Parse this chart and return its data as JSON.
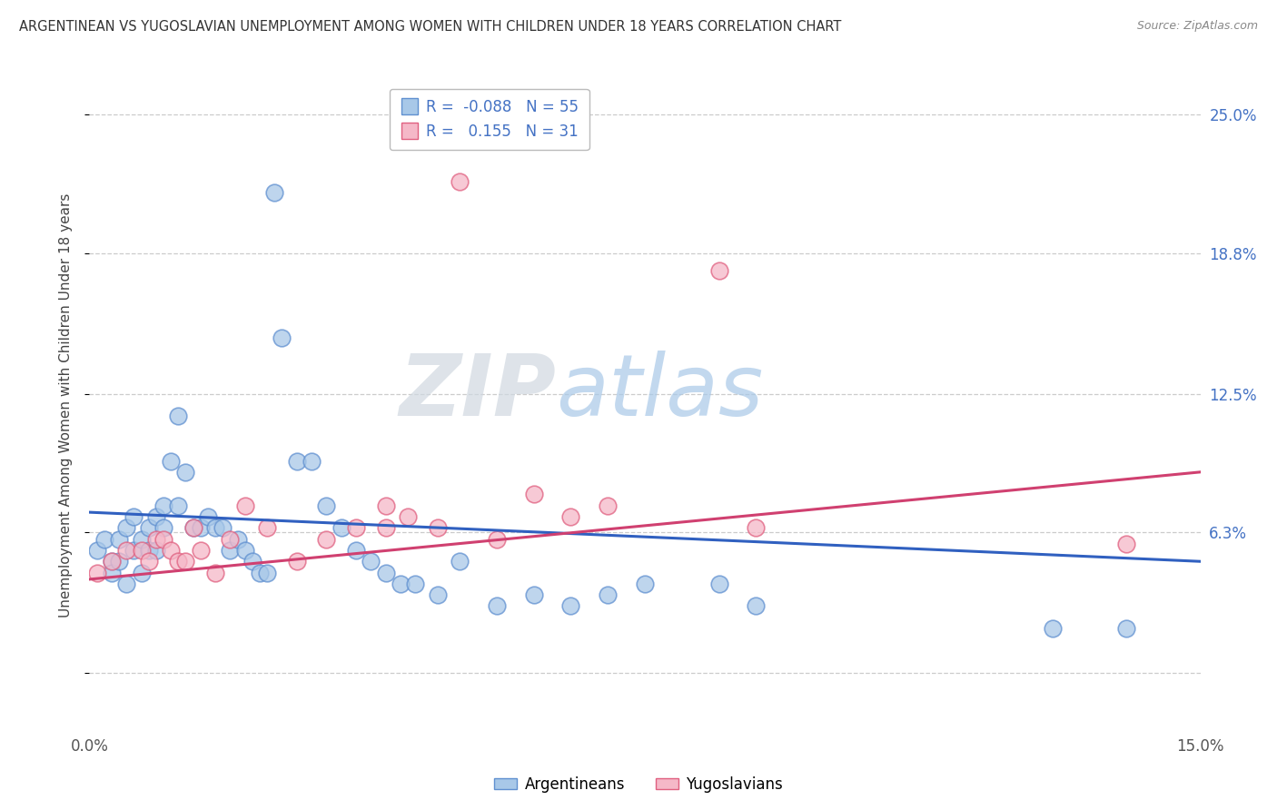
{
  "title": "ARGENTINEAN VS YUGOSLAVIAN UNEMPLOYMENT AMONG WOMEN WITH CHILDREN UNDER 18 YEARS CORRELATION CHART",
  "source": "Source: ZipAtlas.com",
  "ylabel": "Unemployment Among Women with Children Under 18 years",
  "xlim": [
    0.0,
    0.15
  ],
  "ylim": [
    -0.025,
    0.265
  ],
  "background_color": "#ffffff",
  "grid_color": "#cccccc",
  "watermark_zip": "ZIP",
  "watermark_atlas": "atlas",
  "blue_color": "#a8c8e8",
  "pink_color": "#f5b8c8",
  "blue_edge_color": "#6090d0",
  "pink_edge_color": "#e06080",
  "blue_line_color": "#3060c0",
  "pink_line_color": "#d04070",
  "label_color": "#4472c4",
  "legend_blue_r": "-0.088",
  "legend_blue_n": "55",
  "legend_pink_r": "0.155",
  "legend_pink_n": "31",
  "legend_label_blue": "Argentineans",
  "legend_label_pink": "Yugoslavians",
  "blue_x": [
    0.001,
    0.002,
    0.003,
    0.003,
    0.004,
    0.004,
    0.005,
    0.005,
    0.006,
    0.006,
    0.007,
    0.007,
    0.008,
    0.008,
    0.009,
    0.009,
    0.01,
    0.01,
    0.011,
    0.012,
    0.012,
    0.013,
    0.014,
    0.015,
    0.016,
    0.017,
    0.018,
    0.019,
    0.02,
    0.021,
    0.022,
    0.023,
    0.024,
    0.025,
    0.026,
    0.028,
    0.03,
    0.032,
    0.034,
    0.036,
    0.038,
    0.04,
    0.042,
    0.044,
    0.047,
    0.05,
    0.055,
    0.06,
    0.065,
    0.07,
    0.075,
    0.085,
    0.09,
    0.13,
    0.14
  ],
  "blue_y": [
    0.055,
    0.06,
    0.05,
    0.045,
    0.06,
    0.05,
    0.065,
    0.04,
    0.07,
    0.055,
    0.06,
    0.045,
    0.065,
    0.055,
    0.07,
    0.055,
    0.075,
    0.065,
    0.095,
    0.115,
    0.075,
    0.09,
    0.065,
    0.065,
    0.07,
    0.065,
    0.065,
    0.055,
    0.06,
    0.055,
    0.05,
    0.045,
    0.045,
    0.215,
    0.15,
    0.095,
    0.095,
    0.075,
    0.065,
    0.055,
    0.05,
    0.045,
    0.04,
    0.04,
    0.035,
    0.05,
    0.03,
    0.035,
    0.03,
    0.035,
    0.04,
    0.04,
    0.03,
    0.02,
    0.02
  ],
  "pink_x": [
    0.001,
    0.003,
    0.005,
    0.007,
    0.008,
    0.009,
    0.01,
    0.011,
    0.012,
    0.013,
    0.014,
    0.015,
    0.017,
    0.019,
    0.021,
    0.024,
    0.028,
    0.032,
    0.036,
    0.04,
    0.043,
    0.047,
    0.05,
    0.055,
    0.06,
    0.065,
    0.07,
    0.085,
    0.09,
    0.14,
    0.04
  ],
  "pink_y": [
    0.045,
    0.05,
    0.055,
    0.055,
    0.05,
    0.06,
    0.06,
    0.055,
    0.05,
    0.05,
    0.065,
    0.055,
    0.045,
    0.06,
    0.075,
    0.065,
    0.05,
    0.06,
    0.065,
    0.065,
    0.07,
    0.065,
    0.22,
    0.06,
    0.08,
    0.07,
    0.075,
    0.18,
    0.065,
    0.058,
    0.075
  ],
  "y_ticks": [
    0.0,
    0.063,
    0.125,
    0.188,
    0.25
  ],
  "y_tick_labels": [
    "",
    "6.3%",
    "12.5%",
    "18.8%",
    "25.0%"
  ],
  "blue_trend_start": 0.072,
  "blue_trend_end": 0.05,
  "pink_trend_start": 0.042,
  "pink_trend_end": 0.09
}
